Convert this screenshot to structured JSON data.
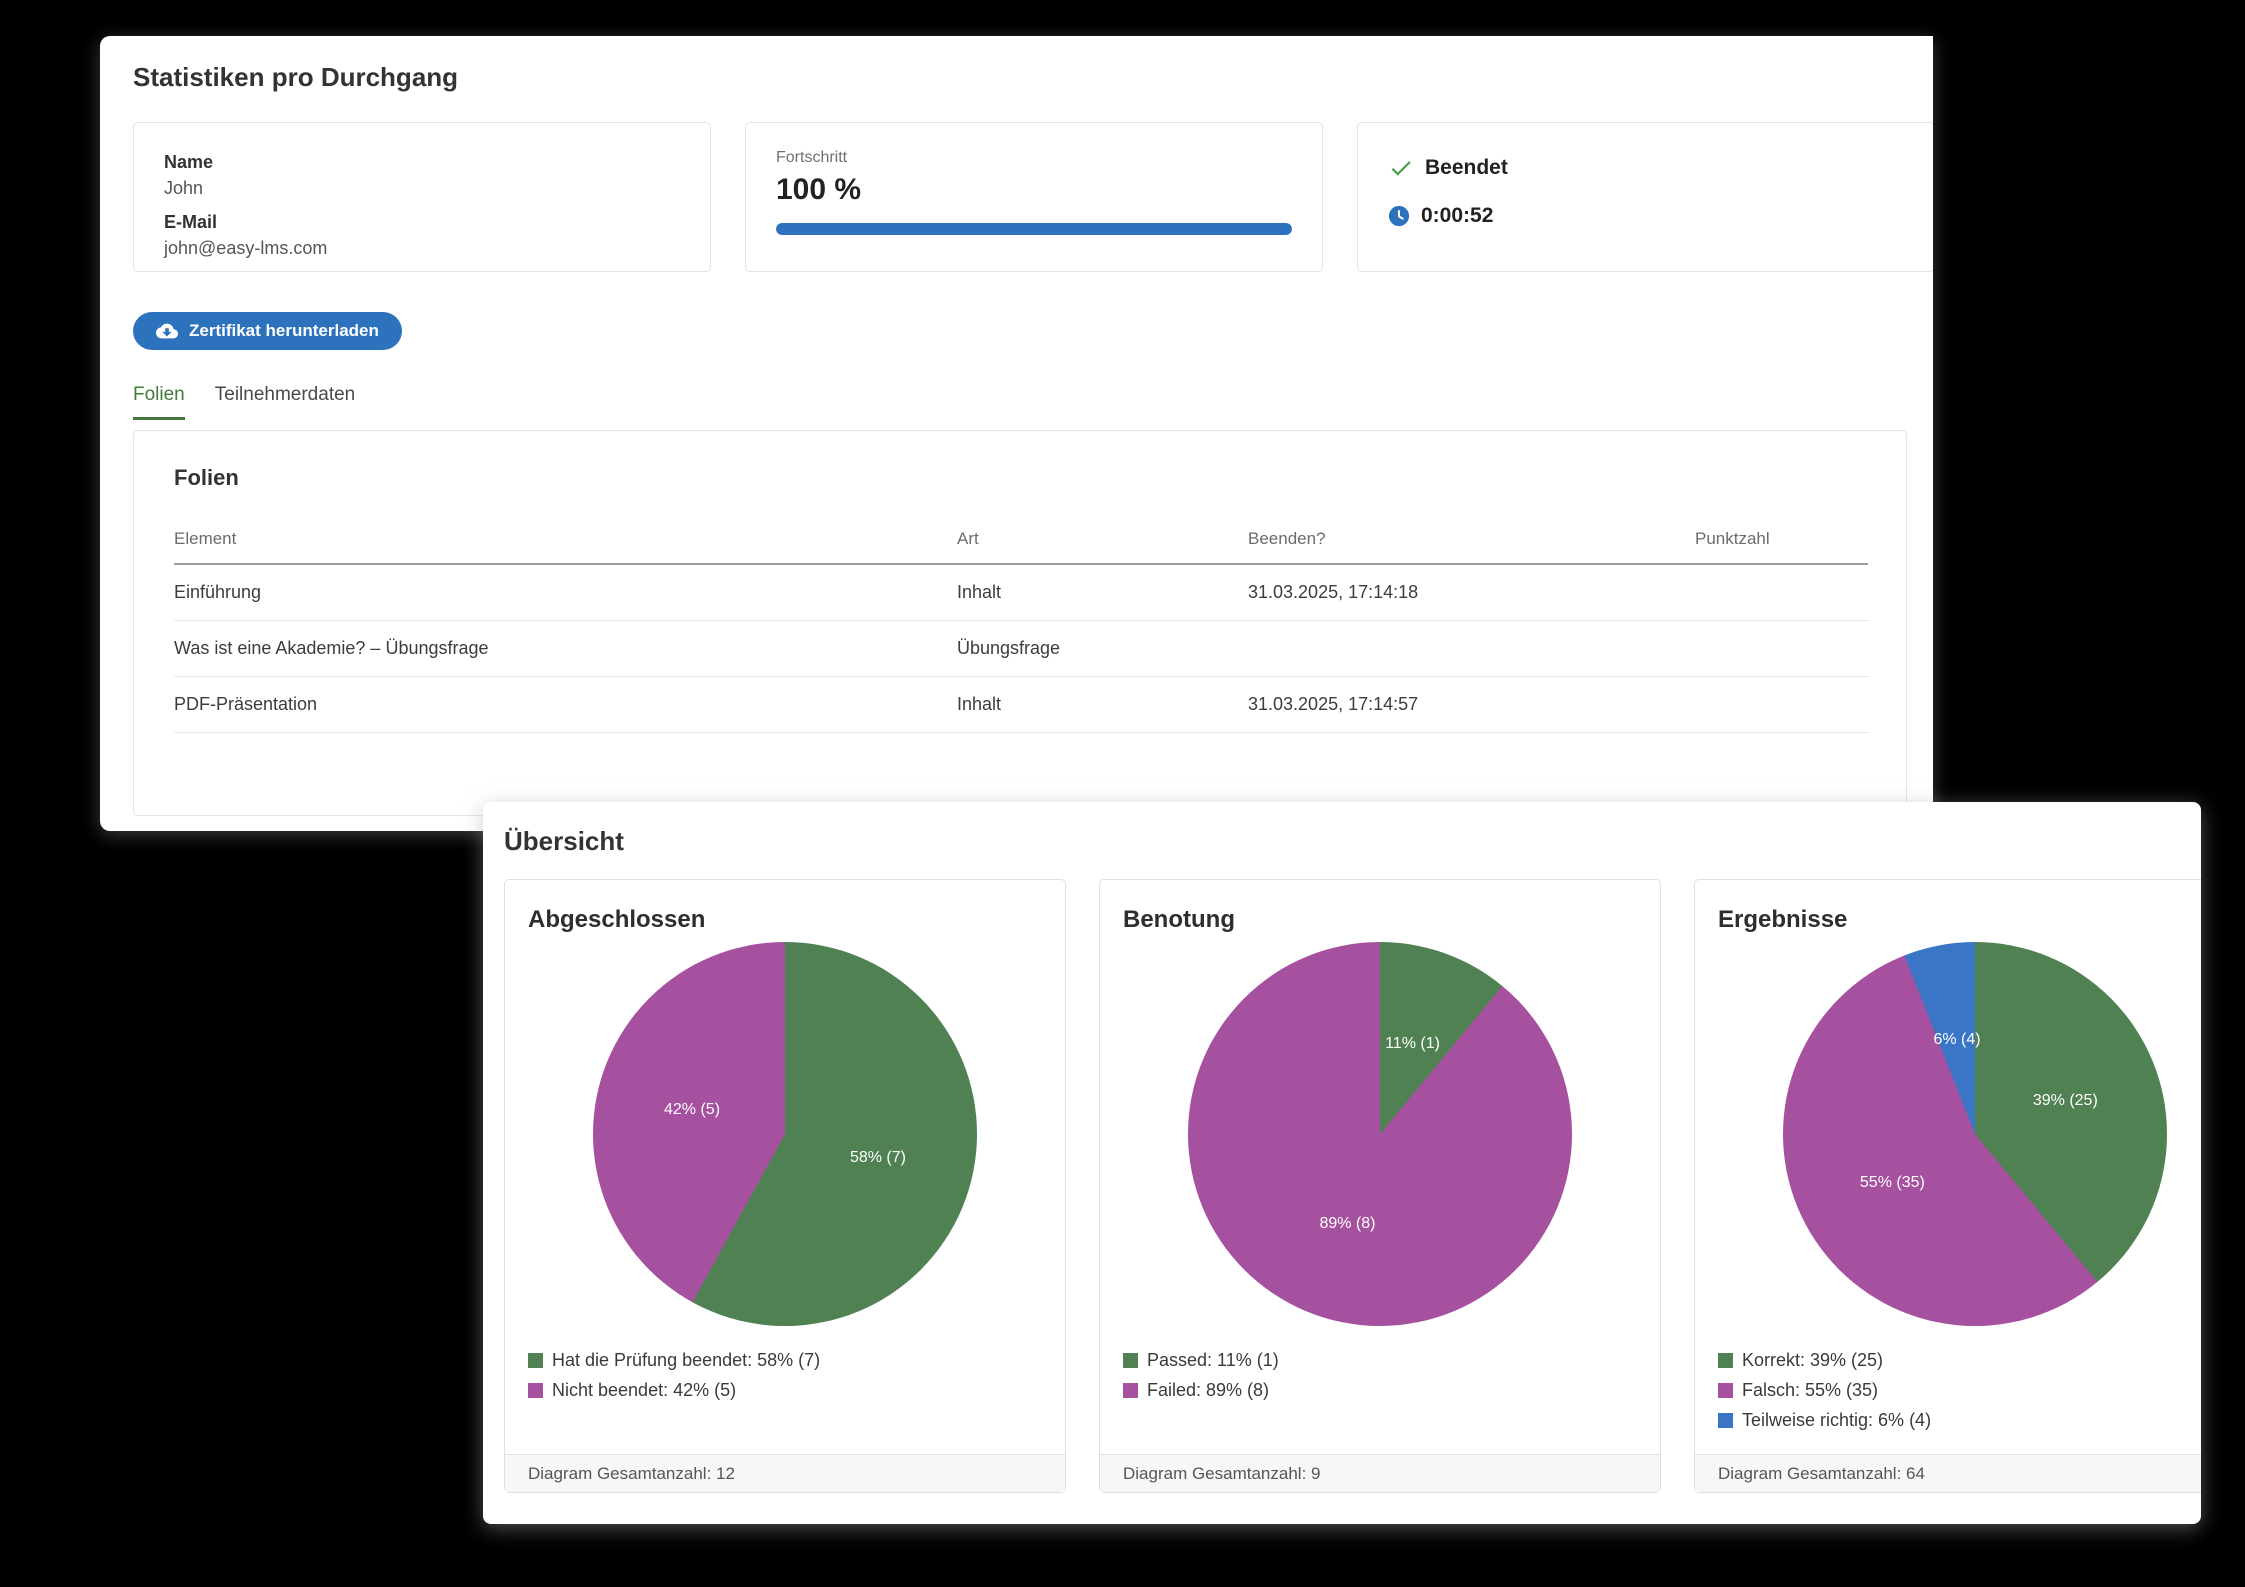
{
  "stats_panel": {
    "title": "Statistiken pro Durchgang",
    "user_card": {
      "name_label": "Name",
      "name_value": "John",
      "email_label": "E-Mail",
      "email_value": "john@easy-lms.com"
    },
    "progress_card": {
      "label": "Fortschritt",
      "value": "100 %",
      "percent": 100
    },
    "status_card": {
      "status_label": "Beendet",
      "time_value": "0:00:52"
    },
    "certificate_button_label": "Zertifikat herunterladen",
    "tabs": [
      {
        "label": "Folien",
        "active": true
      },
      {
        "label": "Teilnehmerdaten",
        "active": false
      }
    ],
    "folien_section": {
      "title": "Folien",
      "table": {
        "headers": [
          "Element",
          "Art",
          "Beenden?",
          "Punktzahl"
        ],
        "rows": [
          {
            "element": "Einführung",
            "art": "Inhalt",
            "beenden": "31.03.2025, 17:14:18",
            "punktzahl": ""
          },
          {
            "element": "Was ist eine Akademie? – Übungsfrage",
            "art": "Übungsfrage",
            "beenden": "",
            "punktzahl": ""
          },
          {
            "element": "PDF-Präsentation",
            "art": "Inhalt",
            "beenden": "31.03.2025, 17:14:57",
            "punktzahl": ""
          }
        ]
      }
    }
  },
  "overview_panel": {
    "title": "Übersicht"
  },
  "colors": {
    "accent_blue": "#2d72bc",
    "green": "#4f8153",
    "purple": "#a6519f",
    "blue_slice": "#3b76c6",
    "tab_green": "#43793b",
    "check_green": "#4a9d4e"
  },
  "chart_data": [
    {
      "type": "pie",
      "title": "Abgeschlossen",
      "slices": [
        {
          "label": "Hat die Prüfung beendet",
          "pct": 58,
          "count": 7,
          "color": "#4f8153"
        },
        {
          "label": "Nicht beendet",
          "pct": 42,
          "count": 5,
          "color": "#a6519f"
        }
      ],
      "total": 12,
      "footer": "Diagram Gesamtanzahl: 12",
      "legend_position": "bottom-left"
    },
    {
      "type": "pie",
      "title": "Benotung",
      "slices": [
        {
          "label": "Passed",
          "pct": 11,
          "count": 1,
          "color": "#4f8153"
        },
        {
          "label": "Failed",
          "pct": 89,
          "count": 8,
          "color": "#a6519f"
        }
      ],
      "total": 9,
      "footer": "Diagram Gesamtanzahl: 9",
      "legend_position": "bottom-left"
    },
    {
      "type": "pie",
      "title": "Ergebnisse",
      "slices": [
        {
          "label": "Korrekt",
          "pct": 39,
          "count": 25,
          "color": "#4f8153"
        },
        {
          "label": "Falsch",
          "pct": 55,
          "count": 35,
          "color": "#a6519f"
        },
        {
          "label": "Teilweise richtig",
          "pct": 6,
          "count": 4,
          "color": "#3b76c6"
        }
      ],
      "total": 64,
      "footer": "Diagram Gesamtanzahl: 64",
      "legend_position": "bottom-left"
    }
  ]
}
